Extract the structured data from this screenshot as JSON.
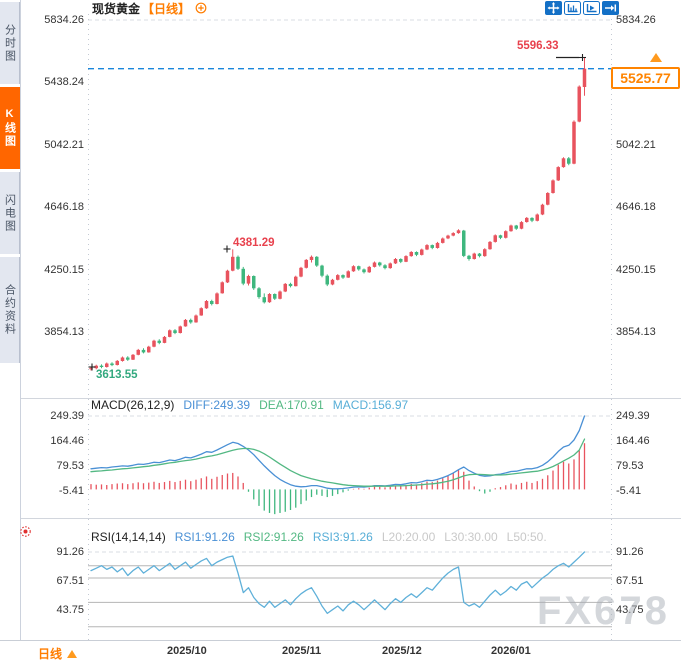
{
  "sidebar": {
    "tabs": [
      {
        "label": "分时图",
        "active": false
      },
      {
        "label": "K线图",
        "active": true
      },
      {
        "label": "闪电图",
        "active": false
      },
      {
        "label": "合约资料",
        "active": false
      }
    ]
  },
  "header": {
    "title": "现货黄金",
    "period_tag": "【日线】"
  },
  "toolbar": {
    "icons": [
      "move-tool-icon",
      "chart-scale-icon",
      "chart-play-icon",
      "pan-right-icon"
    ]
  },
  "price_box": {
    "value": "5525.77"
  },
  "annotations": {
    "high": "5596.33",
    "peak": "4381.29",
    "low": "3613.55"
  },
  "macd_header": {
    "name": "MACD(26,12,9)",
    "diff": "DIFF:249.39",
    "dea": "DEA:170.91",
    "macd": "MACD:156.97"
  },
  "rsi_header": {
    "name": "RSI(14,14,14)",
    "rsi1": "RSI1:91.26",
    "rsi2": "RSI2:91.26",
    "rsi3": "RSI3:91.26",
    "l20": "L20:20.00",
    "l30": "L30:30.00",
    "l50": "L50:50."
  },
  "bottom": {
    "period": "日线",
    "dates": [
      "2025/10",
      "2025/11",
      "2025/12",
      "2026/01"
    ]
  },
  "watermark": "FX678",
  "colors": {
    "up": "#e8535e",
    "down": "#3eb77e",
    "diff_line": "#4a90d5",
    "dea_line": "#53b883",
    "macd_text": "#57aed7",
    "rsi_line": "#5fb0d9",
    "accent": "#ff7d00",
    "active_tab": "#ff6600",
    "price_line": "#1886dc",
    "label_red": "#e8414d",
    "label_green": "#33a97f",
    "gray_label": "#c9c9c9"
  },
  "chart_data": [
    {
      "type": "candlestick",
      "title": "现货黄金 日线",
      "price_axis": [
        5834.26,
        5438.24,
        5042.21,
        4646.18,
        4250.15,
        3854.13
      ],
      "x_dates": [
        "2025/10",
        "2025/11",
        "2025/12",
        "2026/01"
      ],
      "current_price": 5525.77,
      "high_label": 5596.33,
      "peak_label": 4381.29,
      "low_label": 3613.55,
      "candles": [
        [
          3622,
          3634,
          3613.55,
          3628
        ],
        [
          3628,
          3650,
          3621,
          3644
        ],
        [
          3644,
          3652,
          3628,
          3636
        ],
        [
          3636,
          3664,
          3632,
          3658
        ],
        [
          3658,
          3666,
          3641,
          3648
        ],
        [
          3648,
          3680,
          3645,
          3674
        ],
        [
          3674,
          3702,
          3670,
          3696
        ],
        [
          3696,
          3704,
          3674,
          3682
        ],
        [
          3682,
          3718,
          3680,
          3713
        ],
        [
          3713,
          3750,
          3710,
          3744
        ],
        [
          3744,
          3754,
          3722,
          3728
        ],
        [
          3728,
          3770,
          3726,
          3764
        ],
        [
          3764,
          3808,
          3761,
          3802
        ],
        [
          3802,
          3812,
          3780,
          3788
        ],
        [
          3788,
          3832,
          3786,
          3826
        ],
        [
          3826,
          3874,
          3824,
          3868
        ],
        [
          3868,
          3876,
          3844,
          3851
        ],
        [
          3851,
          3898,
          3848,
          3893
        ],
        [
          3893,
          3940,
          3890,
          3934
        ],
        [
          3934,
          3942,
          3910,
          3918
        ],
        [
          3918,
          3968,
          3916,
          3962
        ],
        [
          3962,
          4014,
          3960,
          4008
        ],
        [
          4008,
          4060,
          4004,
          4054
        ],
        [
          4054,
          4062,
          4026,
          4035
        ],
        [
          4035,
          4108,
          4032,
          4102
        ],
        [
          4102,
          4178,
          4100,
          4172
        ],
        [
          4172,
          4252,
          4168,
          4246
        ],
        [
          4246,
          4381.29,
          4242,
          4334
        ],
        [
          4334,
          4342,
          4250,
          4258
        ],
        [
          4258,
          4270,
          4154,
          4164
        ],
        [
          4164,
          4220,
          4152,
          4212
        ],
        [
          4212,
          4216,
          4124,
          4134
        ],
        [
          4134,
          4142,
          4068,
          4078
        ],
        [
          4078,
          4102,
          4038,
          4046
        ],
        [
          4046,
          4104,
          4042,
          4098
        ],
        [
          4098,
          4102,
          4060,
          4068
        ],
        [
          4068,
          4120,
          4064,
          4114
        ],
        [
          4114,
          4168,
          4110,
          4162
        ],
        [
          4162,
          4170,
          4140,
          4148
        ],
        [
          4148,
          4214,
          4146,
          4208
        ],
        [
          4208,
          4270,
          4204,
          4264
        ],
        [
          4264,
          4320,
          4260,
          4314
        ],
        [
          4314,
          4342,
          4298,
          4334
        ],
        [
          4334,
          4338,
          4270,
          4278
        ],
        [
          4278,
          4284,
          4204,
          4214
        ],
        [
          4214,
          4222,
          4148,
          4158
        ],
        [
          4158,
          4194,
          4154,
          4188
        ],
        [
          4188,
          4224,
          4184,
          4218
        ],
        [
          4218,
          4222,
          4194,
          4202
        ],
        [
          4202,
          4248,
          4200,
          4242
        ],
        [
          4242,
          4280,
          4238,
          4274
        ],
        [
          4274,
          4278,
          4246,
          4254
        ],
        [
          4254,
          4260,
          4228,
          4236
        ],
        [
          4236,
          4276,
          4232,
          4270
        ],
        [
          4270,
          4304,
          4266,
          4298
        ],
        [
          4298,
          4302,
          4272,
          4280
        ],
        [
          4280,
          4286,
          4254,
          4262
        ],
        [
          4262,
          4298,
          4258,
          4292
        ],
        [
          4292,
          4326,
          4288,
          4320
        ],
        [
          4320,
          4324,
          4294,
          4302
        ],
        [
          4302,
          4344,
          4300,
          4338
        ],
        [
          4338,
          4370,
          4334,
          4364
        ],
        [
          4364,
          4368,
          4338,
          4346
        ],
        [
          4346,
          4386,
          4342,
          4380
        ],
        [
          4380,
          4414,
          4376,
          4408
        ],
        [
          4408,
          4412,
          4382,
          4390
        ],
        [
          4390,
          4428,
          4386,
          4422
        ],
        [
          4422,
          4456,
          4418,
          4450
        ],
        [
          4450,
          4474,
          4446,
          4468
        ],
        [
          4468,
          4490,
          4464,
          4484
        ],
        [
          4484,
          4508,
          4480,
          4502
        ],
        [
          4500,
          4504,
          4332,
          4340
        ],
        [
          4340,
          4346,
          4310,
          4320
        ],
        [
          4320,
          4360,
          4316,
          4354
        ],
        [
          4354,
          4358,
          4330,
          4338
        ],
        [
          4338,
          4388,
          4334,
          4382
        ],
        [
          4382,
          4434,
          4378,
          4428
        ],
        [
          4428,
          4476,
          4424,
          4470
        ],
        [
          4470,
          4474,
          4446,
          4454
        ],
        [
          4454,
          4502,
          4450,
          4496
        ],
        [
          4496,
          4538,
          4492,
          4532
        ],
        [
          4532,
          4536,
          4504,
          4512
        ],
        [
          4512,
          4560,
          4508,
          4554
        ],
        [
          4554,
          4586,
          4550,
          4580
        ],
        [
          4580,
          4584,
          4554,
          4562
        ],
        [
          4562,
          4608,
          4558,
          4602
        ],
        [
          4602,
          4670,
          4598,
          4664
        ],
        [
          4664,
          4744,
          4660,
          4738
        ],
        [
          4738,
          4824,
          4734,
          4818
        ],
        [
          4818,
          4908,
          4814,
          4902
        ],
        [
          4902,
          4964,
          4898,
          4958
        ],
        [
          4958,
          4966,
          4914,
          4924
        ],
        [
          4924,
          5198,
          4920,
          5190
        ],
        [
          5190,
          5420,
          5186,
          5412
        ],
        [
          5410,
          5596.33,
          5354,
          5525.77
        ]
      ]
    },
    {
      "type": "line",
      "name": "MACD(26,12,9)",
      "axis": [
        249.39,
        164.46,
        79.53,
        -5.41
      ],
      "diff": [
        70,
        72,
        74,
        73,
        76,
        78,
        80,
        79,
        82,
        86,
        85,
        88,
        92,
        91,
        95,
        100,
        98,
        103,
        109,
        107,
        113,
        120,
        128,
        126,
        134,
        143,
        152,
        160,
        156,
        146,
        134,
        118,
        99,
        80,
        63,
        47,
        34,
        24,
        16,
        11,
        9,
        10,
        13,
        13,
        9,
        4,
        2,
        2,
        3,
        5,
        8,
        9,
        8,
        10,
        13,
        13,
        12,
        14,
        17,
        16,
        19,
        23,
        22,
        26,
        31,
        30,
        34,
        40,
        47,
        56,
        67,
        76,
        64,
        55,
        48,
        45,
        46,
        50,
        52,
        56,
        61,
        62,
        66,
        70,
        70,
        74,
        82,
        94,
        110,
        129,
        144,
        150,
        168,
        200,
        249.39
      ],
      "dea": [
        60,
        62,
        63,
        65,
        66,
        68,
        70,
        71,
        73,
        75,
        77,
        79,
        82,
        84,
        87,
        90,
        92,
        95,
        98,
        100,
        103,
        107,
        111,
        114,
        118,
        123,
        128,
        133,
        137,
        139,
        139,
        136,
        130,
        121,
        110,
        98,
        86,
        75,
        64,
        55,
        47,
        41,
        36,
        32,
        28,
        25,
        22,
        19,
        16,
        14,
        13,
        12,
        11,
        11,
        11,
        11,
        11,
        11,
        12,
        12,
        13,
        14,
        15,
        16,
        18,
        19,
        21,
        24,
        28,
        33,
        39,
        46,
        50,
        51,
        51,
        50,
        49,
        49,
        49,
        50,
        52,
        54,
        56,
        58,
        60,
        62,
        66,
        71,
        78,
        87,
        97,
        106,
        117,
        134,
        170.91
      ],
      "hist": [
        18,
        16,
        17,
        15,
        18,
        20,
        21,
        18,
        21,
        24,
        21,
        23,
        26,
        22,
        25,
        29,
        25,
        29,
        33,
        28,
        33,
        38,
        44,
        36,
        43,
        49,
        54,
        56,
        44,
        22,
        -8,
        -34,
        -56,
        -72,
        -80,
        -84,
        -80,
        -76,
        -70,
        -62,
        -50,
        -38,
        -26,
        -18,
        -22,
        -26,
        -22,
        -16,
        -10,
        -4,
        2,
        4,
        2,
        6,
        10,
        9,
        7,
        9,
        12,
        10,
        14,
        19,
        17,
        21,
        27,
        25,
        30,
        38,
        46,
        56,
        66,
        60,
        30,
        10,
        -6,
        -14,
        -8,
        4,
        8,
        14,
        20,
        16,
        22,
        26,
        22,
        28,
        36,
        48,
        64,
        84,
        94,
        88,
        102,
        132,
        156.97
      ]
    },
    {
      "type": "line",
      "name": "RSI(14,14,14)",
      "axis": [
        91.26,
        67.51,
        43.75
      ],
      "levels": [
        80,
        70,
        50,
        30
      ],
      "values": [
        76,
        78,
        80,
        77,
        79,
        75,
        78,
        72,
        76,
        79,
        74,
        77,
        80,
        76,
        79,
        82,
        77,
        80,
        83,
        78,
        81,
        84,
        86,
        80,
        83,
        85,
        87,
        88,
        74,
        58,
        62,
        54,
        49,
        46,
        51,
        46,
        49,
        52,
        48,
        53,
        57,
        60,
        62,
        55,
        47,
        41,
        44,
        47,
        43,
        48,
        51,
        48,
        44,
        48,
        52,
        48,
        44,
        49,
        53,
        50,
        54,
        57,
        54,
        58,
        62,
        60,
        65,
        70,
        74,
        77,
        79,
        50,
        47,
        49,
        46,
        51,
        56,
        60,
        56,
        59,
        63,
        60,
        65,
        67,
        62,
        66,
        70,
        73,
        77,
        80,
        82,
        79,
        83,
        87,
        91.26
      ]
    }
  ]
}
